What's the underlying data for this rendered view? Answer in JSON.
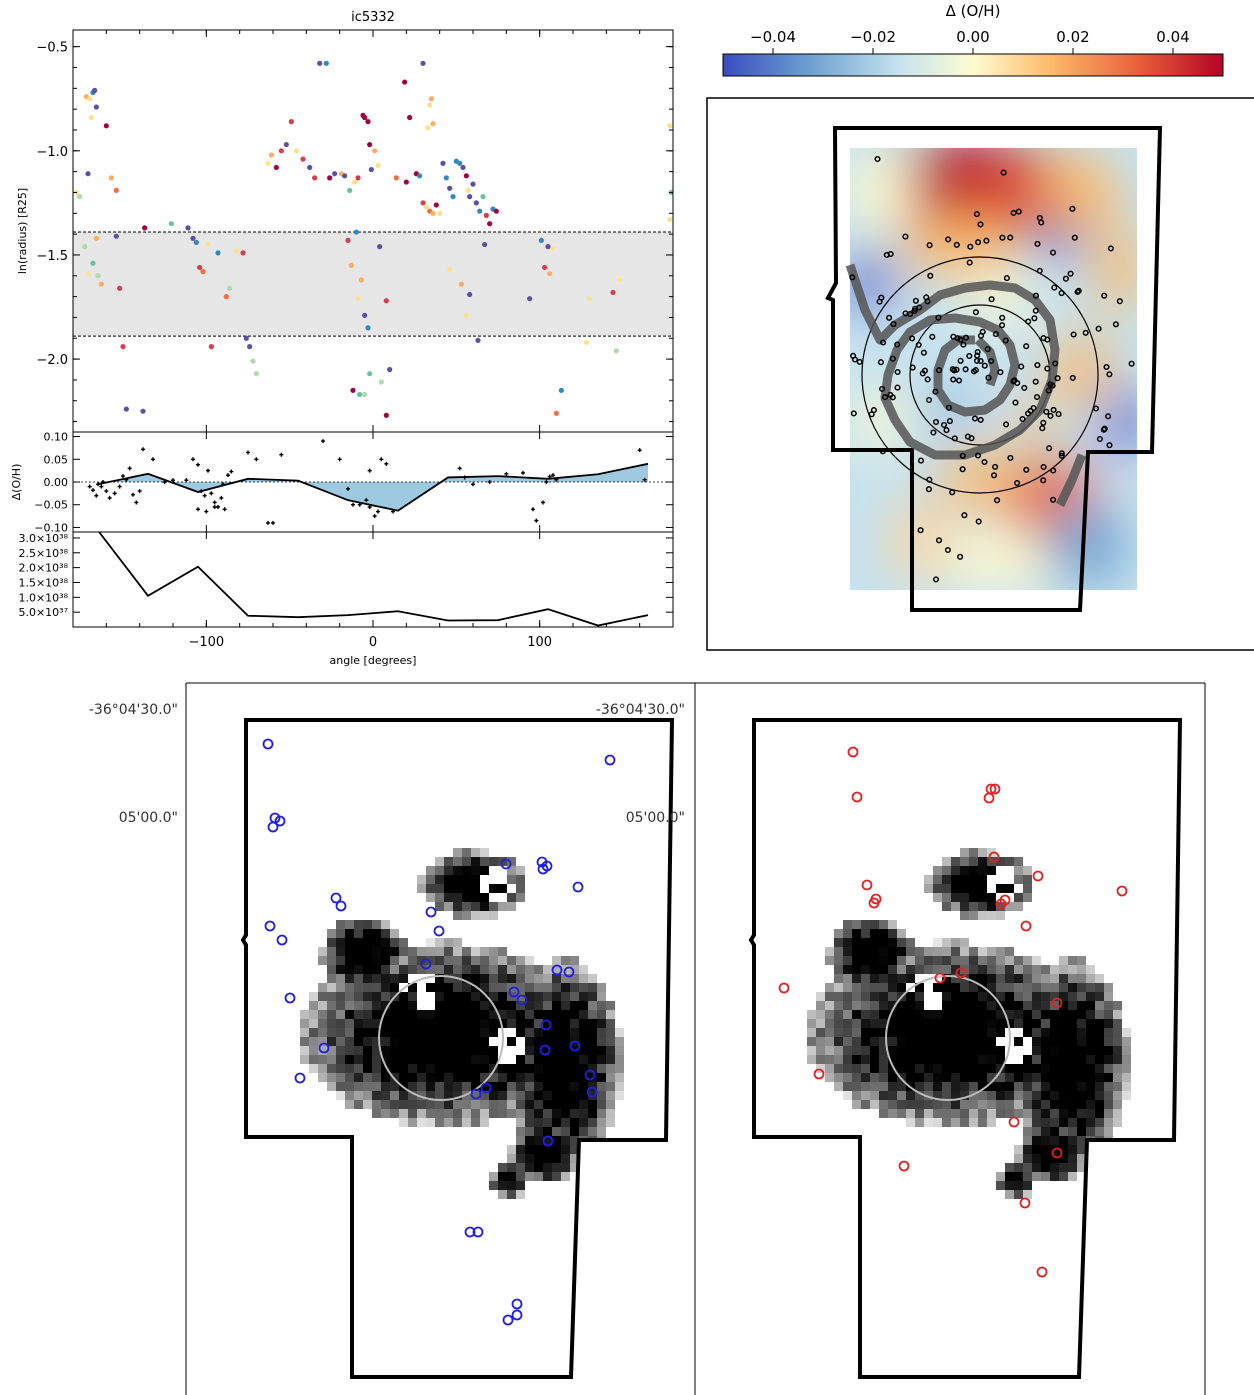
{
  "chart_data": [
    {
      "type": "scatter",
      "title": "ic5332",
      "xlabel": "",
      "ylabel": "ln(radius) [R25]",
      "xlim": [
        -180,
        180
      ],
      "ylim": [
        -2.35,
        -0.42
      ],
      "yticks": [
        "-0.5",
        "-1.0",
        "-1.5",
        "-2.0"
      ],
      "band": [
        -1.89,
        -1.39
      ],
      "points": [
        [
          -178,
          -1.2,
          "#fee08b"
        ],
        [
          -176,
          -1.22,
          "#abdda4"
        ],
        [
          -172,
          -0.74,
          "#fdae61"
        ],
        [
          -170,
          -0.75,
          "#fee08b"
        ],
        [
          -168,
          -0.72,
          "#3288bd"
        ],
        [
          -167,
          -0.71,
          "#5e4fa2"
        ],
        [
          -166,
          -0.79,
          "#5e4fa2"
        ],
        [
          -169,
          -0.84,
          "#fee08b"
        ],
        [
          -171,
          -1.11,
          "#5e4fa2"
        ],
        [
          -173,
          -1.46,
          "#abdda4"
        ],
        [
          -171,
          -1.59,
          "#fee08b"
        ],
        [
          -168,
          -1.54,
          "#66c2a5"
        ],
        [
          -166,
          -1.42,
          "#fdae61"
        ],
        [
          -163,
          -1.64,
          "#fdae61"
        ],
        [
          -165,
          -1.6,
          "#abdda4"
        ],
        [
          -160,
          -0.88,
          "#9e0142"
        ],
        [
          -157,
          -1.13,
          "#fdae61"
        ],
        [
          -154,
          -1.19,
          "#f46d43"
        ],
        [
          -154,
          -1.41,
          "#5e4fa2"
        ],
        [
          -152,
          -1.66,
          "#d53e4f"
        ],
        [
          -150,
          -1.94,
          "#d53e4f"
        ],
        [
          -148,
          -2.24,
          "#5e4fa2"
        ],
        [
          -138,
          -2.25,
          "#5e4fa2"
        ],
        [
          -137,
          -1.37,
          "#9e0142"
        ],
        [
          -121,
          -1.35,
          "#66c2a5"
        ],
        [
          -111,
          -1.37,
          "#5e4fa2"
        ],
        [
          -108,
          -1.42,
          "#5e4fa2"
        ],
        [
          -106,
          -1.44,
          "#3288bd"
        ],
        [
          -104,
          -1.56,
          "#d53e4f"
        ],
        [
          -102,
          -1.58,
          "#f46d43"
        ],
        [
          -99,
          -1.45,
          "#fee08b"
        ],
        [
          -97,
          -1.94,
          "#d53e4f"
        ],
        [
          -93,
          -1.49,
          "#3288bd"
        ],
        [
          -88,
          -1.7,
          "#f46d43"
        ],
        [
          -86,
          -1.66,
          "#abdda4"
        ],
        [
          -82,
          -1.48,
          "#fee08b"
        ],
        [
          -78,
          -1.49,
          "#d53e4f"
        ],
        [
          -76,
          -1.9,
          "#5e4fa2"
        ],
        [
          -74,
          -1.94,
          "#5e4fa2"
        ],
        [
          -72,
          -2.01,
          "#abdda4"
        ],
        [
          -70,
          -2.07,
          "#abdda4"
        ],
        [
          -63,
          -1.06,
          "#fee08b"
        ],
        [
          -61,
          -1.02,
          "#fdae61"
        ],
        [
          -58,
          -1.08,
          "#9e0142"
        ],
        [
          -55,
          -1.0,
          "#d53e4f"
        ],
        [
          -52,
          -0.97,
          "#5e4fa2"
        ],
        [
          -49,
          -0.86,
          "#d53e4f"
        ],
        [
          -46,
          -1.0,
          "#fee08b"
        ],
        [
          -42,
          -1.04,
          "#d53e4f"
        ],
        [
          -38,
          -1.08,
          "#5e4fa2"
        ],
        [
          -35,
          -1.13,
          "#d53e4f"
        ],
        [
          -32,
          -0.58,
          "#5e4fa2"
        ],
        [
          -28,
          -0.58,
          "#3288bd"
        ],
        [
          -26,
          -1.13,
          "#9e0142"
        ],
        [
          -23,
          -1.11,
          "#5e4fa2"
        ],
        [
          -19,
          -1.11,
          "#fdae61"
        ],
        [
          -17,
          -1.12,
          "#5e4fa2"
        ],
        [
          -14,
          -1.19,
          "#66c2a5"
        ],
        [
          -11,
          -1.15,
          "#fee08b"
        ],
        [
          -9,
          -1.13,
          "#d53e4f"
        ],
        [
          -6,
          -0.83,
          "#9e0142"
        ],
        [
          -5,
          -0.84,
          "#9e0142"
        ],
        [
          -3,
          -0.86,
          "#9e0142"
        ],
        [
          -2,
          -0.97,
          "#9e0142"
        ],
        [
          -1,
          -1.09,
          "#5e4fa2"
        ],
        [
          1,
          -1.0,
          "#fdae61"
        ],
        [
          3,
          -1.07,
          "#fee08b"
        ],
        [
          -10,
          -1.39,
          "#3288bd"
        ],
        [
          -15,
          -1.43,
          "#d53e4f"
        ],
        [
          -13,
          -1.55,
          "#fdae61"
        ],
        [
          -9,
          -1.71,
          "#fee08b"
        ],
        [
          -7,
          -1.62,
          "#fdae61"
        ],
        [
          -5,
          -1.79,
          "#5e4fa2"
        ],
        [
          -3,
          -1.85,
          "#3288bd"
        ],
        [
          -12,
          -2.15,
          "#9e0142"
        ],
        [
          -8,
          -2.17,
          "#66c2a5"
        ],
        [
          -5,
          -2.17,
          "#abdda4"
        ],
        [
          -2,
          -2.07,
          "#66c2a5"
        ],
        [
          5,
          -2.11,
          "#abdda4"
        ],
        [
          10,
          -2.05,
          "#5e4fa2"
        ],
        [
          8,
          -2.27,
          "#9e0142"
        ],
        [
          4,
          -1.46,
          "#5e4fa2"
        ],
        [
          8,
          -1.72,
          "#d53e4f"
        ],
        [
          14,
          -1.13,
          "#f46d43"
        ],
        [
          20,
          -1.15,
          "#9e0142"
        ],
        [
          22,
          -0.84,
          "#9e0142"
        ],
        [
          19,
          -0.67,
          "#9e0142"
        ],
        [
          30,
          -0.58,
          "#5e4fa2"
        ],
        [
          35,
          -0.75,
          "#fdae61"
        ],
        [
          33,
          -0.89,
          "#fee08b"
        ],
        [
          36,
          -0.87,
          "#fdae61"
        ],
        [
          34,
          -0.78,
          "#fee08b"
        ],
        [
          26,
          -1.11,
          "#9e0142"
        ],
        [
          28,
          -1.12,
          "#3288bd"
        ],
        [
          30,
          -1.25,
          "#d53e4f"
        ],
        [
          32,
          -1.27,
          "#fee08b"
        ],
        [
          34,
          -1.29,
          "#f46d43"
        ],
        [
          36,
          -1.3,
          "#fdae61"
        ],
        [
          38,
          -1.26,
          "#9e0142"
        ],
        [
          40,
          -1.3,
          "#fee08b"
        ],
        [
          42,
          -1.06,
          "#5e4fa2"
        ],
        [
          44,
          -1.13,
          "#3288bd"
        ],
        [
          46,
          -1.18,
          "#5e4fa2"
        ],
        [
          48,
          -1.22,
          "#3288bd"
        ],
        [
          50,
          -1.05,
          "#3288bd"
        ],
        [
          52,
          -1.06,
          "#3288bd"
        ],
        [
          54,
          -1.08,
          "#5e4fa2"
        ],
        [
          56,
          -1.12,
          "#9e0142"
        ],
        [
          57,
          -1.19,
          "#fee08b"
        ],
        [
          58,
          -1.22,
          "#5e4fa2"
        ],
        [
          60,
          -1.16,
          "#5e4fa2"
        ],
        [
          62,
          -1.25,
          "#5e4fa2"
        ],
        [
          64,
          -1.29,
          "#3288bd"
        ],
        [
          66,
          -1.22,
          "#66c2a5"
        ],
        [
          68,
          -1.31,
          "#d53e4f"
        ],
        [
          70,
          -1.35,
          "#9e0142"
        ],
        [
          72,
          -1.28,
          "#3288bd"
        ],
        [
          74,
          -1.29,
          "#9e0142"
        ],
        [
          46,
          -1.57,
          "#fee08b"
        ],
        [
          53,
          -1.64,
          "#fdae61"
        ],
        [
          56,
          -1.79,
          "#fee08b"
        ],
        [
          58,
          -1.69,
          "#5e4fa2"
        ],
        [
          63,
          -1.91,
          "#5e4fa2"
        ],
        [
          67,
          -1.45,
          "#5e4fa2"
        ],
        [
          94,
          -1.71,
          "#5e4fa2"
        ],
        [
          101,
          -1.43,
          "#3288bd"
        ],
        [
          103,
          -1.56,
          "#d53e4f"
        ],
        [
          105,
          -1.46,
          "#5e4fa2"
        ],
        [
          106,
          -1.59,
          "#fdae61"
        ],
        [
          108,
          -1.47,
          "#fee08b"
        ],
        [
          110,
          -2.26,
          "#f46d43"
        ],
        [
          113,
          -2.15,
          "#3288bd"
        ],
        [
          128,
          -1.92,
          "#fee08b"
        ],
        [
          130,
          -1.71,
          "#fee08b"
        ],
        [
          144,
          -1.68,
          "#d53e4f"
        ],
        [
          146,
          -1.96,
          "#abdda4"
        ],
        [
          148,
          -1.62,
          "#fee08b"
        ],
        [
          178,
          -0.88,
          "#fee08b"
        ],
        [
          178,
          -1.33,
          "#fee08b"
        ],
        [
          179,
          -1.2,
          "#66c2a5"
        ]
      ]
    },
    {
      "type": "line",
      "title": "",
      "xlabel": "",
      "ylabel": "Δ(O/H)",
      "xlim": [
        -180,
        180
      ],
      "ylim": [
        -0.11,
        0.11
      ],
      "yticks": [
        "0.10",
        "0.05",
        "0.00",
        "-0.05",
        "-0.10"
      ],
      "x": [
        -165,
        -135,
        -105,
        -75,
        -45,
        -15,
        15,
        45,
        75,
        105,
        135,
        165
      ],
      "y": [
        -0.005,
        0.018,
        -0.022,
        0.007,
        0.003,
        -0.04,
        -0.063,
        0.01,
        0.013,
        0.007,
        0.017,
        0.04
      ],
      "points": [
        [
          -170,
          -0.01
        ],
        [
          -168,
          -0.018
        ],
        [
          -166,
          -0.03
        ],
        [
          -165,
          -0.005
        ],
        [
          -163,
          -0.01
        ],
        [
          -162,
          0.0
        ],
        [
          -160,
          -0.02
        ],
        [
          -158,
          -0.035
        ],
        [
          -155,
          -0.025
        ],
        [
          -152,
          -0.01
        ],
        [
          -150,
          0.013
        ],
        [
          -148,
          0.005
        ],
        [
          -146,
          0.03
        ],
        [
          -144,
          -0.028
        ],
        [
          -142,
          -0.045
        ],
        [
          -140,
          -0.02
        ],
        [
          -138,
          0.072
        ],
        [
          -132,
          0.05
        ],
        [
          -125,
          0.0
        ],
        [
          -120,
          0.004
        ],
        [
          -112,
          0.004
        ],
        [
          -108,
          0.05
        ],
        [
          -105,
          0.038
        ],
        [
          -103,
          -0.02
        ],
        [
          -101,
          -0.03
        ],
        [
          -99,
          0.025
        ],
        [
          -97,
          -0.025
        ],
        [
          -95,
          -0.045
        ],
        [
          -93,
          -0.055
        ],
        [
          -91,
          -0.035
        ],
        [
          -89,
          -0.06
        ],
        [
          -87,
          0.015
        ],
        [
          -85,
          0.023
        ],
        [
          -105,
          -0.06
        ],
        [
          -100,
          -0.065
        ],
        [
          -95,
          -0.055
        ],
        [
          -90,
          -0.005
        ],
        [
          -75,
          0.065
        ],
        [
          -70,
          0.05
        ],
        [
          -63,
          -0.09
        ],
        [
          -60,
          -0.09
        ],
        [
          -55,
          0.06
        ],
        [
          -30,
          0.09
        ],
        [
          -20,
          0.05
        ],
        [
          -15,
          -0.015
        ],
        [
          -12,
          -0.05
        ],
        [
          -8,
          -0.05
        ],
        [
          -2,
          0.025
        ],
        [
          5,
          0.05
        ],
        [
          3,
          -0.065
        ],
        [
          1,
          -0.075
        ],
        [
          -4,
          -0.04
        ],
        [
          -2,
          -0.055
        ],
        [
          8,
          0.04
        ],
        [
          12,
          -0.065
        ],
        [
          52,
          0.03
        ],
        [
          55,
          0.01
        ],
        [
          60,
          -0.005
        ],
        [
          70,
          0.0
        ],
        [
          80,
          0.018
        ],
        [
          90,
          0.02
        ],
        [
          96,
          -0.06
        ],
        [
          98,
          -0.085
        ],
        [
          102,
          -0.045
        ],
        [
          104,
          0.0
        ],
        [
          106,
          0.012
        ],
        [
          108,
          0.015
        ],
        [
          110,
          0.005
        ],
        [
          160,
          0.07
        ],
        [
          163,
          0.005
        ]
      ]
    },
    {
      "type": "line",
      "title": "",
      "xlabel": "angle [degrees]",
      "ylabel": "",
      "xlim": [
        -180,
        180
      ],
      "ylim": [
        0,
        3.2e+38
      ],
      "yticks": [
        "3.0×10³⁸",
        "2.5×10³⁸",
        "2.0×10³⁸",
        "1.5×10³⁸",
        "1.0×10³⁸",
        "5.0×10³⁷"
      ],
      "xticks": [
        "-100",
        "0",
        "100"
      ],
      "x": [
        -165,
        -135,
        -105,
        -75,
        -45,
        -15,
        15,
        45,
        75,
        105,
        135,
        165
      ],
      "y": [
        3.25e+38,
        1.05e+38,
        2.03e+38,
        3.8e+37,
        3.3e+37,
        4e+37,
        5.3e+37,
        2.2e+37,
        2.3e+37,
        6e+37,
        5e+36,
        4e+37
      ]
    },
    {
      "type": "heatmap",
      "title": "",
      "colorbar_label": "Δ (O/H)",
      "colorbar_ticks": [
        "−0.04",
        "−0.02",
        "0.00",
        "0.02",
        "0.04"
      ],
      "clim": [
        -0.05,
        0.05
      ],
      "colormap": [
        "#3b4cc0",
        "#6b9fd0",
        "#c6e2ef",
        "#fffbd1",
        "#fdb868",
        "#e8603b",
        "#b40426"
      ]
    },
    {
      "type": "scatter",
      "title": "",
      "dec_labels": [
        "-36°04'30.0\"",
        "05'00.0\""
      ],
      "marker_colors": {
        "left": "#1f1fe0",
        "right": "#e02222"
      }
    }
  ]
}
